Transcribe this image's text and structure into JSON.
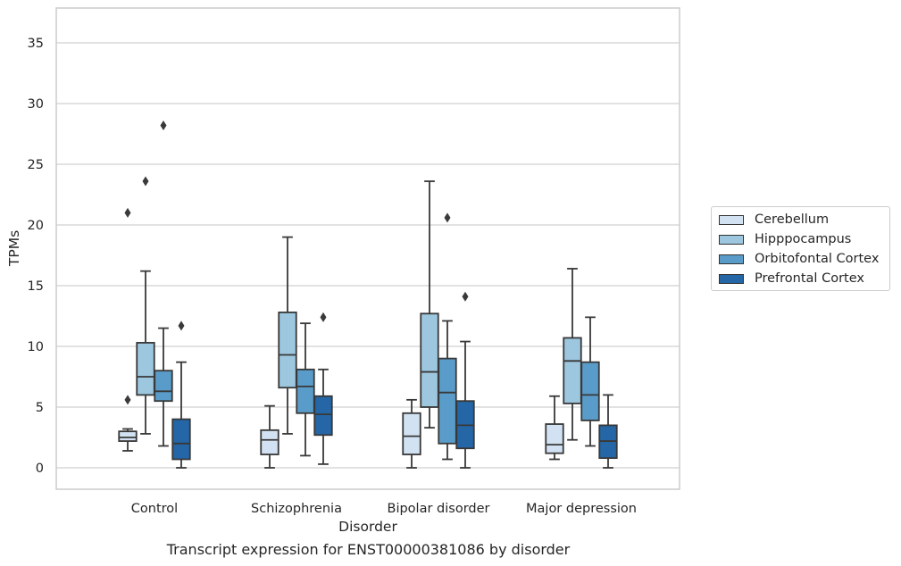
{
  "chart_data": {
    "type": "box",
    "categories": [
      "Control",
      "Schizophrenia",
      "Bipolar disorder",
      "Major depression"
    ],
    "xlabel": "Disorder",
    "ylabel": "TPMs",
    "ylim": [
      -1.8,
      37.8
    ],
    "yticks": [
      0,
      5,
      10,
      15,
      20,
      25,
      30,
      35
    ],
    "grid": true,
    "legend_position": "right",
    "series": [
      {
        "name": "Cerebellum",
        "color": "#d2e2f2",
        "boxes": [
          {
            "whisker_low": 1.4,
            "q1": 2.2,
            "median": 2.5,
            "q3": 3.0,
            "whisker_high": 3.2,
            "outliers": [
              5.6,
              21.0
            ]
          },
          {
            "whisker_low": 0.0,
            "q1": 1.1,
            "median": 2.3,
            "q3": 3.1,
            "whisker_high": 5.1,
            "outliers": []
          },
          {
            "whisker_low": 0.0,
            "q1": 1.1,
            "median": 2.6,
            "q3": 4.5,
            "whisker_high": 5.6,
            "outliers": []
          },
          {
            "whisker_low": 0.7,
            "q1": 1.2,
            "median": 1.9,
            "q3": 3.6,
            "whisker_high": 5.9,
            "outliers": []
          }
        ]
      },
      {
        "name": "Hipppocampus",
        "color": "#9dc7df",
        "boxes": [
          {
            "whisker_low": 2.8,
            "q1": 6.0,
            "median": 7.5,
            "q3": 10.3,
            "whisker_high": 16.2,
            "outliers": [
              23.6
            ]
          },
          {
            "whisker_low": 2.8,
            "q1": 6.6,
            "median": 9.3,
            "q3": 12.8,
            "whisker_high": 19.0,
            "outliers": []
          },
          {
            "whisker_low": 3.3,
            "q1": 5.0,
            "median": 7.9,
            "q3": 12.7,
            "whisker_high": 23.6,
            "outliers": []
          },
          {
            "whisker_low": 2.3,
            "q1": 5.3,
            "median": 8.8,
            "q3": 10.7,
            "whisker_high": 16.4,
            "outliers": []
          }
        ]
      },
      {
        "name": "Orbitofontal Cortex",
        "color": "#5a9cc9",
        "boxes": [
          {
            "whisker_low": 1.8,
            "q1": 5.5,
            "median": 6.3,
            "q3": 8.0,
            "whisker_high": 11.5,
            "outliers": [
              28.2
            ]
          },
          {
            "whisker_low": 1.0,
            "q1": 4.5,
            "median": 6.7,
            "q3": 8.1,
            "whisker_high": 11.9,
            "outliers": []
          },
          {
            "whisker_low": 0.7,
            "q1": 2.0,
            "median": 6.2,
            "q3": 9.0,
            "whisker_high": 12.1,
            "outliers": [
              20.6
            ]
          },
          {
            "whisker_low": 1.8,
            "q1": 3.9,
            "median": 6.0,
            "q3": 8.7,
            "whisker_high": 12.4,
            "outliers": []
          }
        ]
      },
      {
        "name": "Prefrontal Cortex",
        "color": "#2466a6",
        "boxes": [
          {
            "whisker_low": 0.0,
            "q1": 0.7,
            "median": 2.0,
            "q3": 4.0,
            "whisker_high": 8.7,
            "outliers": [
              11.7
            ]
          },
          {
            "whisker_low": 0.3,
            "q1": 2.7,
            "median": 4.4,
            "q3": 5.9,
            "whisker_high": 8.1,
            "outliers": [
              12.4
            ]
          },
          {
            "whisker_low": 0.0,
            "q1": 1.6,
            "median": 3.5,
            "q3": 5.5,
            "whisker_high": 10.4,
            "outliers": [
              14.1
            ]
          },
          {
            "whisker_low": 0.0,
            "q1": 0.8,
            "median": 2.2,
            "q3": 3.5,
            "whisker_high": 6.0,
            "outliers": []
          }
        ]
      }
    ]
  },
  "caption": "Transcript expression for ENST00000381086 by disorder"
}
